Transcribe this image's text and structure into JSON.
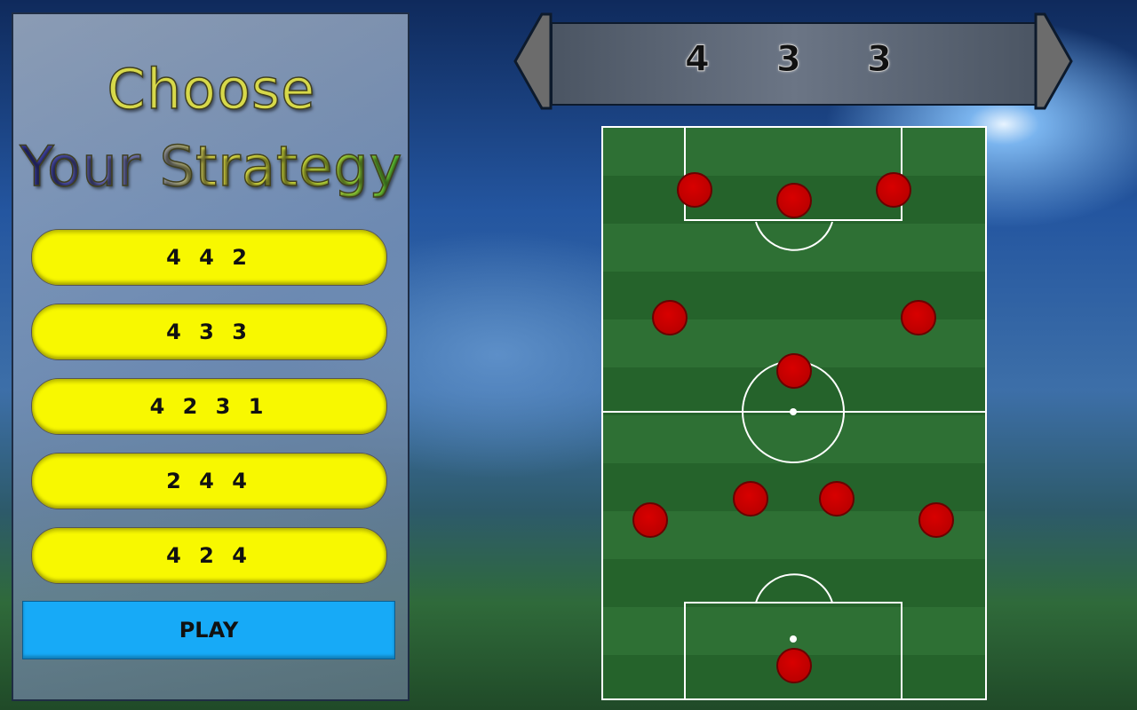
{
  "panel": {
    "title_line1": "Choose",
    "title_line2": "Your Strategy",
    "options": [
      "4 4 2",
      "4 3 3",
      "4 2 3 1",
      "2 4 4",
      "4 2 4"
    ],
    "play_label": "PLAY"
  },
  "selector": {
    "digits": [
      "4",
      "3",
      "3"
    ],
    "left_icon": "arrow-left-icon",
    "right_icon": "arrow-right-icon"
  },
  "colors": {
    "option": "#f8f800",
    "play": "#17aaf7",
    "player": "#c80000",
    "pitch": "#2e7034"
  }
}
